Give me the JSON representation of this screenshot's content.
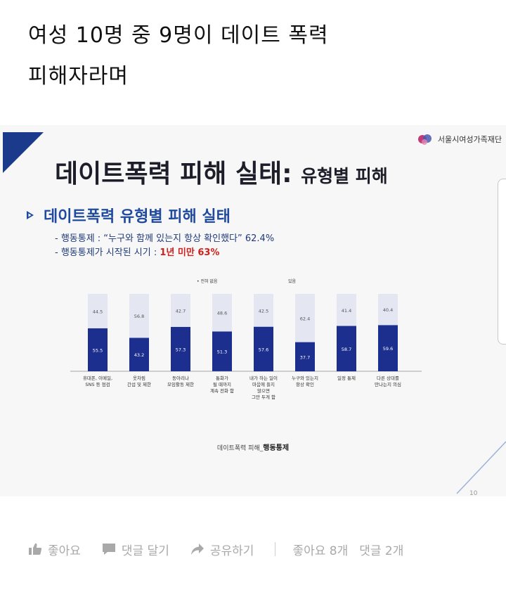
{
  "post": {
    "line1": "여성 10명 중 9명이 데이트 폭력",
    "line2": "피해자라며"
  },
  "slide": {
    "org_name": "서울시여성가족재단",
    "title_main": "데이트폭력 피해 실태:",
    "title_sub": "유형별 피해",
    "section_title": "데이트폭력 유형별 피해 실태",
    "bullet1": "- 행동통제 : “누구와 함께 있는지 항상 확인했다” 62.4%",
    "bullet2_prefix": "- 행동통제가 시작된 시기 : ",
    "bullet2_highlight": "1년 미만 63%",
    "footer_prefix": "데이트폭력 피해_",
    "footer_bold": "행동통제",
    "page_number": "10"
  },
  "chart_data": {
    "type": "bar",
    "stacked": true,
    "legend": [
      "전혀 없음",
      "있음"
    ],
    "categories": [
      [
        "휴대폰, 이메일,",
        "SNS 등 점검"
      ],
      [
        "옷차림",
        "간섭 및 제한"
      ],
      [
        "동아리나",
        "모임활동 제한"
      ],
      [
        "통화가",
        "될 때까지",
        "계속 전화 함"
      ],
      [
        "내가 하는 일이",
        "마음에 들지",
        "않으면",
        "그만 두게 함"
      ],
      [
        "누구와 있는지",
        "항상 확인"
      ],
      [
        "일정 통제"
      ],
      [
        "다른 상대를",
        "만나는지 의심"
      ]
    ],
    "series": [
      {
        "name": "전혀 없음",
        "values": [
          55.5,
          43.2,
          57.3,
          51.3,
          57.6,
          37.7,
          58.7,
          59.6
        ],
        "color": "#1c2f8f"
      },
      {
        "name": "있음",
        "values": [
          44.5,
          56.8,
          42.7,
          48.6,
          42.5,
          62.4,
          41.4,
          40.4
        ],
        "color": "#e4e6f2"
      }
    ],
    "ylim": [
      0,
      100
    ]
  },
  "actions": {
    "like": "좋아요",
    "comment": "댓글 달기",
    "share": "공유하기",
    "likes_count": "좋아요 8개",
    "comments_count": "댓글 2개"
  },
  "colors": {
    "accent": "#1c3a8c",
    "section_blue": "#1f4a9e",
    "highlight_red": "#d0201c",
    "bar_dark": "#1c2f8f",
    "bar_light": "#e4e6f2"
  }
}
